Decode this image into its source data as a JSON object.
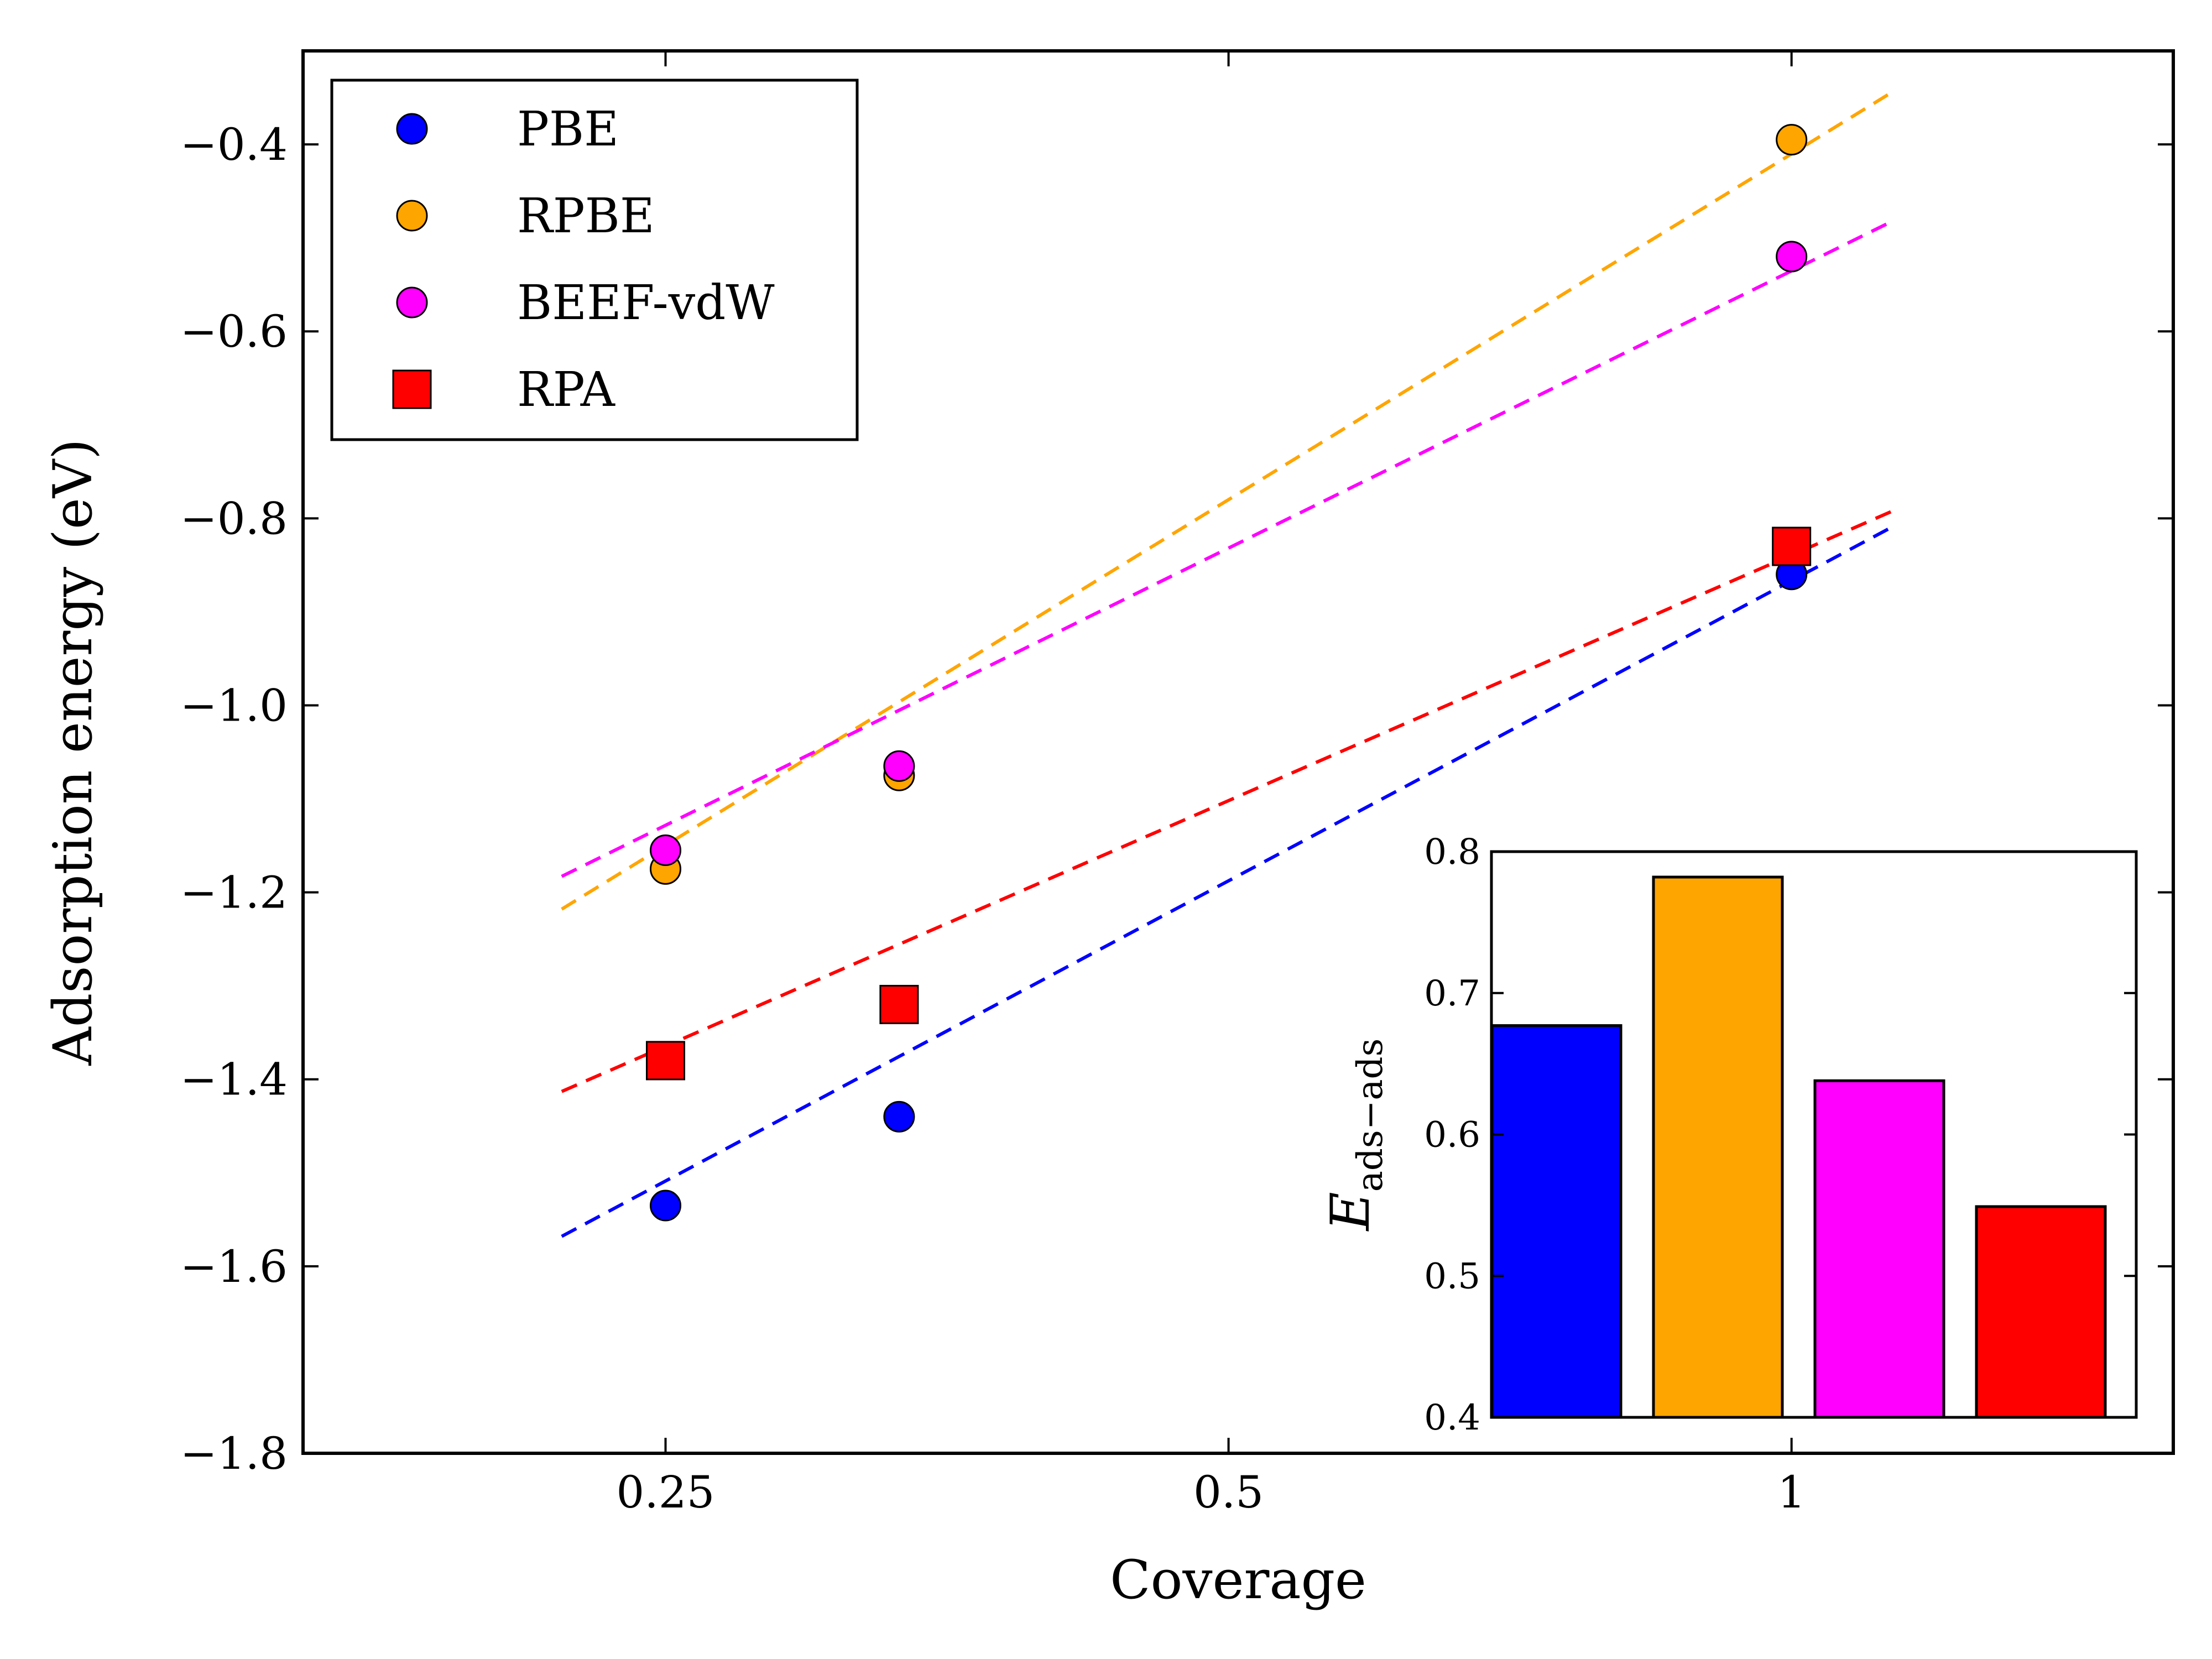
{
  "chart_data": [
    {
      "type": "scatter",
      "xlabel": "Coverage",
      "ylabel": "Adsorption energy (eV)",
      "xscale": "log",
      "xlim": [
        0.16,
        1.6
      ],
      "ylim": [
        -1.8,
        -0.3
      ],
      "x_ticks": [
        {
          "value": 0.25,
          "label": "0.25"
        },
        {
          "value": 0.5,
          "label": "0.5"
        },
        {
          "value": 1,
          "label": "1"
        }
      ],
      "y_ticks": [
        {
          "value": -1.8,
          "label": "−1.8"
        },
        {
          "value": -1.6,
          "label": "−1.6"
        },
        {
          "value": -1.4,
          "label": "−1.4"
        },
        {
          "value": -1.2,
          "label": "−1.2"
        },
        {
          "value": -1.0,
          "label": "−1.0"
        },
        {
          "value": -0.8,
          "label": "−0.8"
        },
        {
          "value": -0.6,
          "label": "−0.6"
        },
        {
          "value": -0.4,
          "label": "−0.4"
        }
      ],
      "legend_position": "top-left",
      "series": [
        {
          "name": "PBE",
          "color": "#0000ff",
          "marker": "circle",
          "x": [
            0.25,
            0.3333,
            1.0
          ],
          "y": [
            -1.535,
            -1.44,
            -0.86
          ],
          "fit_x": [
            0.22,
            1.13
          ],
          "fit_y": [
            -1.568,
            -0.81
          ]
        },
        {
          "name": "RPBE",
          "color": "#ffa500",
          "marker": "circle",
          "x": [
            0.25,
            0.3333,
            1.0
          ],
          "y": [
            -1.175,
            -1.075,
            -0.395
          ],
          "fit_x": [
            0.22,
            1.13
          ],
          "fit_y": [
            -1.218,
            -0.345
          ]
        },
        {
          "name": "BEEF-vdW",
          "color": "#ff00ff",
          "marker": "circle",
          "x": [
            0.25,
            0.3333,
            1.0
          ],
          "y": [
            -1.155,
            -1.065,
            -0.52
          ],
          "fit_x": [
            0.22,
            1.13
          ],
          "fit_y": [
            -1.183,
            -0.483
          ]
        },
        {
          "name": "RPA",
          "color": "#ff0000",
          "marker": "square",
          "x": [
            0.25,
            0.3333,
            1.0
          ],
          "y": [
            -1.38,
            -1.32,
            -0.83
          ],
          "fit_x": [
            0.22,
            1.13
          ],
          "fit_y": [
            -1.413,
            -0.793
          ]
        }
      ]
    },
    {
      "type": "bar",
      "ylabel": "E",
      "ylabel_subscript": "ads−ads",
      "ylim": [
        0.4,
        0.8
      ],
      "y_ticks": [
        {
          "value": 0.4,
          "label": "0.4"
        },
        {
          "value": 0.5,
          "label": "0.5"
        },
        {
          "value": 0.6,
          "label": "0.6"
        },
        {
          "value": 0.7,
          "label": "0.7"
        },
        {
          "value": 0.8,
          "label": "0.8"
        }
      ],
      "categories": [
        "PBE",
        "RPBE",
        "BEEF-vdW",
        "RPA"
      ],
      "values": [
        0.677,
        0.782,
        0.638,
        0.549
      ],
      "colors": [
        "#0000ff",
        "#ffa500",
        "#ff00ff",
        "#ff0000"
      ]
    }
  ]
}
